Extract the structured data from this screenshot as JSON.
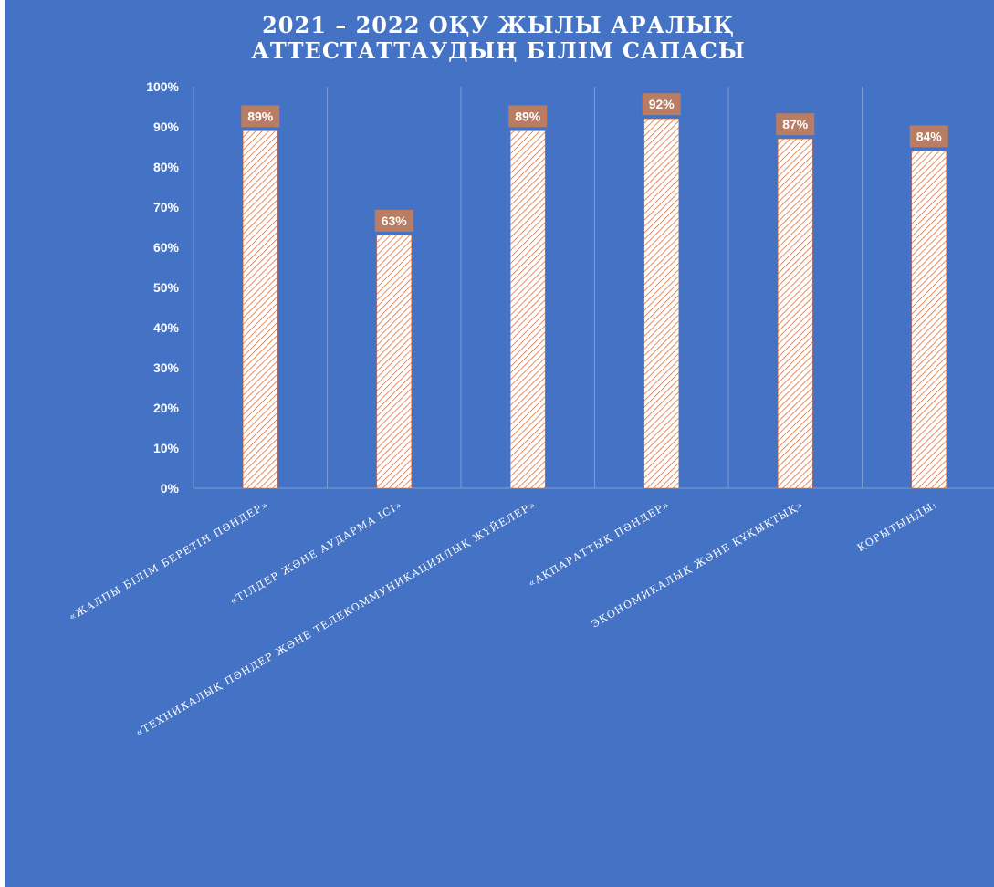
{
  "colors": {
    "background": "#4472C4",
    "bar_fill": "#FFFFFF",
    "bar_hatch": "#E0703A",
    "label_box": "#B97D63",
    "gridline": "#7E9DD4",
    "text": "#FFFFFF"
  },
  "chart_data": {
    "type": "bar",
    "title": "2021 – 2022 ОҚУ ЖЫЛЫ АРАЛЫҚ АТТЕСТАТТАУДЫҢ БІЛІМ САПАСЫ",
    "title_lines": [
      "2021 – 2022 ОҚУ ЖЫЛЫ АРАЛЫҚ",
      "АТТЕСТАТТАУДЫҢ БІЛІМ САПАСЫ"
    ],
    "categories": [
      "«ЖАЛПЫ БІЛІМ БЕРЕТІН ПӘНДЕР»",
      "«ТІЛДЕР ЖӘНЕ АУДАРМА ІСІ»",
      "«ТЕХНИКАЛЫҚ ПӘНДЕР ЖӘНЕ ТЕЛЕКОММУНИКАЦИЯЛЫҚ ЖҮЙЕЛЕР»",
      "«АҚПАРАТТЫҚ ПӘНДЕР»",
      "ЭКОНОМИКАЛЫҚ ЖӘНЕ ҚҰҚЫҚТЫҚ»",
      "ҚОРЫТЫНДЫ:"
    ],
    "values": [
      89,
      63,
      89,
      92,
      87,
      84
    ],
    "data_labels": [
      "89%",
      "63%",
      "89%",
      "92%",
      "87%",
      "84%"
    ],
    "yticks": [
      "0%",
      "10%",
      "20%",
      "30%",
      "40%",
      "50%",
      "60%",
      "70%",
      "80%",
      "90%",
      "100%"
    ],
    "ylim": [
      0,
      100
    ],
    "xlabel": "",
    "ylabel": "",
    "grid": "vertical",
    "legend": "none"
  }
}
